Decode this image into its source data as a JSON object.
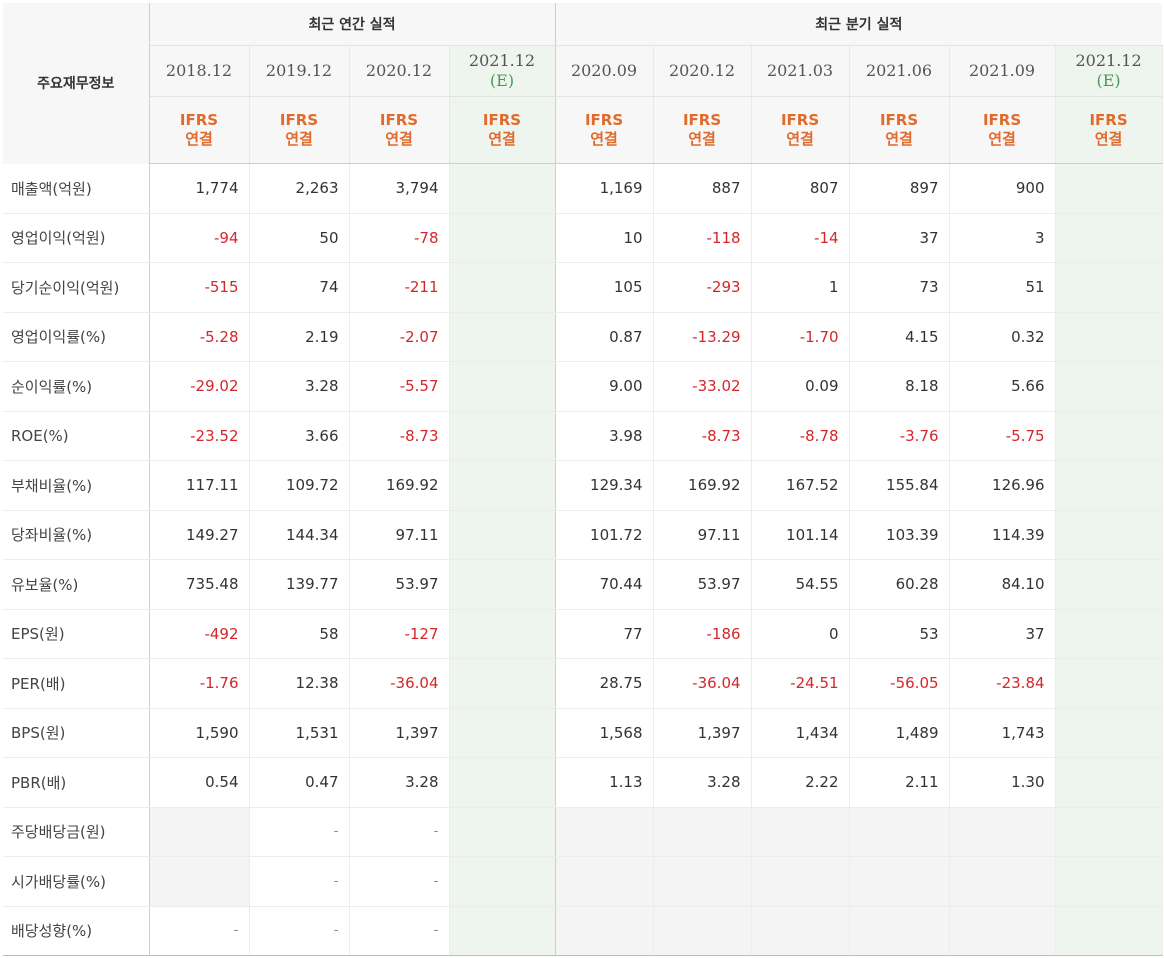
{
  "table": {
    "row_header_label": "주요재무정보",
    "group_annual": "최근 연간 실적",
    "group_quarter": "최근 분기 실적",
    "ifrs_top": "IFRS",
    "ifrs_bottom": "연결",
    "estimate_mark": "(E)",
    "annual_dates": [
      "2018.12",
      "2019.12",
      "2020.12",
      "2021.12"
    ],
    "quarter_dates": [
      "2020.09",
      "2020.12",
      "2021.03",
      "2021.06",
      "2021.09",
      "2021.12"
    ],
    "rows": [
      {
        "label": "매출액(억원)",
        "values": [
          "1,774",
          "2,263",
          "3,794",
          "",
          "1,169",
          "887",
          "807",
          "897",
          "900",
          ""
        ]
      },
      {
        "label": "영업이익(억원)",
        "values": [
          "-94",
          "50",
          "-78",
          "",
          "10",
          "-118",
          "-14",
          "37",
          "3",
          ""
        ]
      },
      {
        "label": "당기순이익(억원)",
        "values": [
          "-515",
          "74",
          "-211",
          "",
          "105",
          "-293",
          "1",
          "73",
          "51",
          ""
        ]
      },
      {
        "label": "영업이익률(%)",
        "values": [
          "-5.28",
          "2.19",
          "-2.07",
          "",
          "0.87",
          "-13.29",
          "-1.70",
          "4.15",
          "0.32",
          ""
        ]
      },
      {
        "label": "순이익률(%)",
        "values": [
          "-29.02",
          "3.28",
          "-5.57",
          "",
          "9.00",
          "-33.02",
          "0.09",
          "8.18",
          "5.66",
          ""
        ]
      },
      {
        "label": "ROE(%)",
        "values": [
          "-23.52",
          "3.66",
          "-8.73",
          "",
          "3.98",
          "-8.73",
          "-8.78",
          "-3.76",
          "-5.75",
          ""
        ]
      },
      {
        "label": "부채비율(%)",
        "values": [
          "117.11",
          "109.72",
          "169.92",
          "",
          "129.34",
          "169.92",
          "167.52",
          "155.84",
          "126.96",
          ""
        ]
      },
      {
        "label": "당좌비율(%)",
        "values": [
          "149.27",
          "144.34",
          "97.11",
          "",
          "101.72",
          "97.11",
          "101.14",
          "103.39",
          "114.39",
          ""
        ]
      },
      {
        "label": "유보율(%)",
        "values": [
          "735.48",
          "139.77",
          "53.97",
          "",
          "70.44",
          "53.97",
          "54.55",
          "60.28",
          "84.10",
          ""
        ]
      },
      {
        "label": "EPS(원)",
        "values": [
          "-492",
          "58",
          "-127",
          "",
          "77",
          "-186",
          "0",
          "53",
          "37",
          ""
        ]
      },
      {
        "label": "PER(배)",
        "values": [
          "-1.76",
          "12.38",
          "-36.04",
          "",
          "28.75",
          "-36.04",
          "-24.51",
          "-56.05",
          "-23.84",
          ""
        ]
      },
      {
        "label": "BPS(원)",
        "values": [
          "1,590",
          "1,531",
          "1,397",
          "",
          "1,568",
          "1,397",
          "1,434",
          "1,489",
          "1,743",
          ""
        ]
      },
      {
        "label": "PBR(배)",
        "values": [
          "0.54",
          "0.47",
          "3.28",
          "",
          "1.13",
          "3.28",
          "2.22",
          "2.11",
          "1.30",
          ""
        ]
      },
      {
        "label": "주당배당금(원)",
        "values": [
          "",
          "-",
          "-",
          "",
          "",
          "",
          "",
          "",
          "",
          ""
        ]
      },
      {
        "label": "시가배당률(%)",
        "values": [
          "",
          "-",
          "-",
          "",
          "",
          "",
          "",
          "",
          "",
          ""
        ]
      },
      {
        "label": "배당성향(%)",
        "values": [
          "-",
          "-",
          "-",
          "",
          "",
          "",
          "",
          "",
          "",
          ""
        ]
      }
    ]
  },
  "colors": {
    "negative": "#d4262b",
    "ifrs": "#e06b2c",
    "estimate_bg": "#edf5ee",
    "estimate_text": "#4a9a55"
  }
}
